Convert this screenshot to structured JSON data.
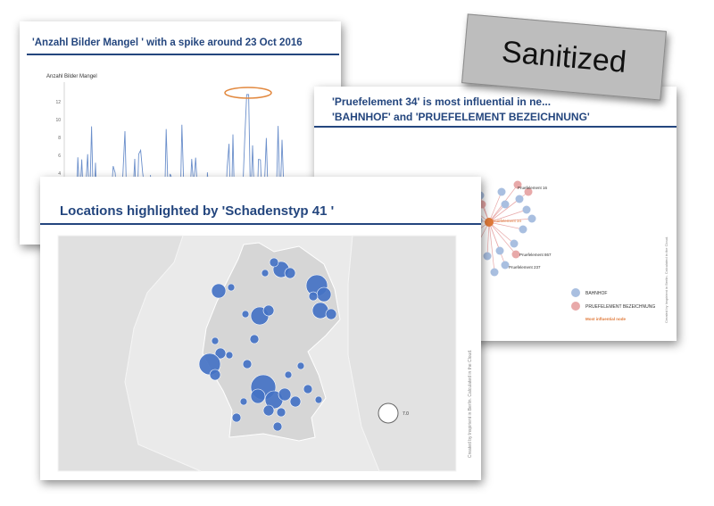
{
  "slide_line": {
    "title": "'Anzahl Bilder Mangel ' with a spike around 23 Oct 2016",
    "ylabel": "Anzahl Bilder Mangel",
    "yticks": [
      "12",
      "10",
      "8",
      "6",
      "4"
    ],
    "accent": "#6b8fcb",
    "highlight": "#e2883e"
  },
  "slide_network": {
    "title_line1": "'Pruefelement 34' is most influential in ne...",
    "title_line2": "'BAHNHOF' and 'PRUEFELEMENT BEZEICHNUNG'",
    "center_label": "Pruefelement 34",
    "node_labels": [
      "Pruefelement 16",
      "Pruefelement 867",
      "Pruefelement 237"
    ],
    "legend": {
      "bahnhof": "BAHNHOF",
      "pruefelement": "PRUEFELEMENT BEZEICHNUNG",
      "influential": "Most influential node"
    },
    "credit": "Created by Inspirient in Berlin. Calculated in the Cloud.",
    "colors": {
      "bahnhof": "#a9bfe0",
      "pruefelement": "#e8a9a9",
      "center": "#e07a3a"
    }
  },
  "slide_map": {
    "title": "Locations highlighted by 'Schadenstyp 41 '",
    "size_legend_value": "7.0",
    "credit": "Created by Inspirient in Berlin. Calculated in the Cloud.",
    "colors": {
      "bubble": "#4472c4",
      "land": "#d6d6d6",
      "water": "#eaeaea"
    }
  },
  "stamp": {
    "label": "Sanitized"
  }
}
